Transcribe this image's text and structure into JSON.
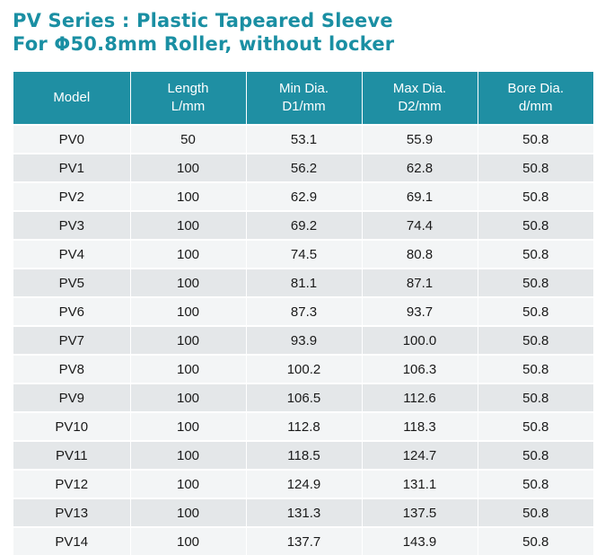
{
  "title": {
    "line1": "PV Series : Plastic Tapeared Sleeve",
    "line2": "For Φ50.8mm Roller, without locker"
  },
  "table": {
    "headers": [
      [
        "Model"
      ],
      [
        "Length",
        "L/mm"
      ],
      [
        "Min Dia.",
        "D1/mm"
      ],
      [
        "Max Dia.",
        "D2/mm"
      ],
      [
        "Bore Dia.",
        "d/mm"
      ]
    ],
    "rows": [
      [
        "PV0",
        "50",
        "53.1",
        "55.9",
        "50.8"
      ],
      [
        "PV1",
        "100",
        "56.2",
        "62.8",
        "50.8"
      ],
      [
        "PV2",
        "100",
        "62.9",
        "69.1",
        "50.8"
      ],
      [
        "PV3",
        "100",
        "69.2",
        "74.4",
        "50.8"
      ],
      [
        "PV4",
        "100",
        "74.5",
        "80.8",
        "50.8"
      ],
      [
        "PV5",
        "100",
        "81.1",
        "87.1",
        "50.8"
      ],
      [
        "PV6",
        "100",
        "87.3",
        "93.7",
        "50.8"
      ],
      [
        "PV7",
        "100",
        "93.9",
        "100.0",
        "50.8"
      ],
      [
        "PV8",
        "100",
        "100.2",
        "106.3",
        "50.8"
      ],
      [
        "PV9",
        "100",
        "106.5",
        "112.6",
        "50.8"
      ],
      [
        "PV10",
        "100",
        "112.8",
        "118.3",
        "50.8"
      ],
      [
        "PV11",
        "100",
        "118.5",
        "124.7",
        "50.8"
      ],
      [
        "PV12",
        "100",
        "124.9",
        "131.1",
        "50.8"
      ],
      [
        "PV13",
        "100",
        "131.3",
        "137.5",
        "50.8"
      ],
      [
        "PV14",
        "100",
        "137.7",
        "143.9",
        "50.8"
      ]
    ]
  },
  "colors": {
    "title": "#1a8fa3",
    "header_bg": "#1f8fa3",
    "header_text": "#ffffff",
    "row_light": "#f3f5f6",
    "row_dark": "#e4e7e9"
  }
}
